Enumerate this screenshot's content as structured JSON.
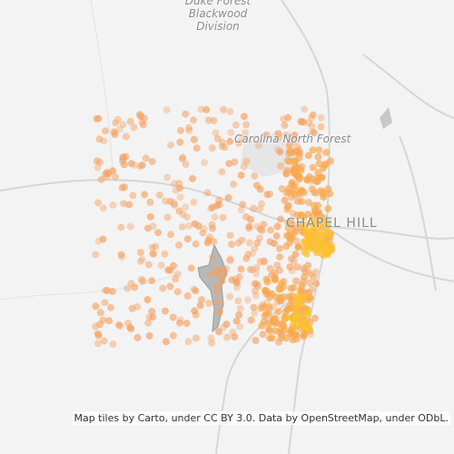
{
  "labels": {
    "forest_1": [
      "Duke Forest",
      "Blackwood",
      "Division"
    ],
    "forest_2": "Carolina North Forest",
    "city": "CHAPEL HILL"
  },
  "attribution": "Map tiles by Carto, under CC BY 3.0. Data by OpenStreetMap, under ODbL."
}
